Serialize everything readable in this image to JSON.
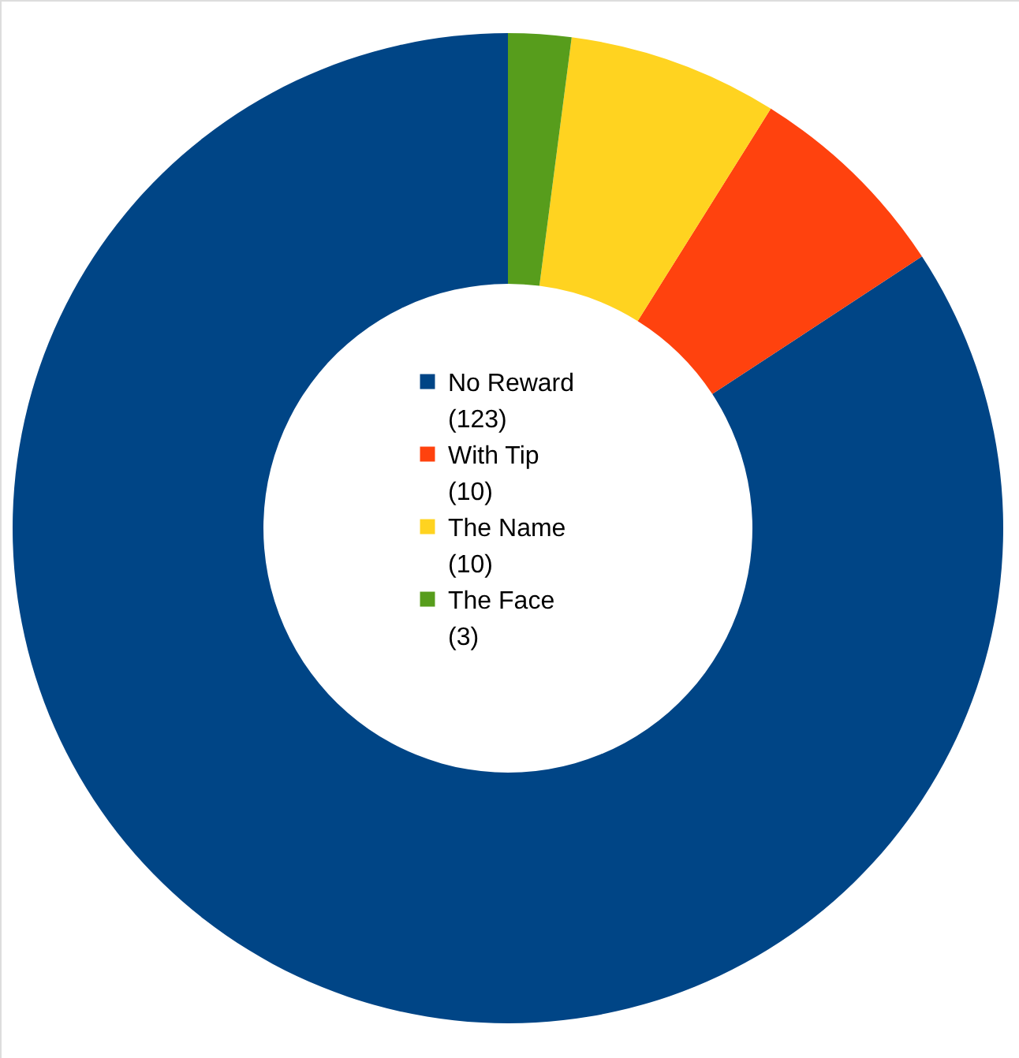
{
  "chart_data": {
    "type": "donut",
    "categories": [
      "No Reward",
      "With Tip",
      "The Name",
      "The Face"
    ],
    "values": [
      123,
      10,
      10,
      3
    ],
    "colors": [
      "#004586",
      "#ff420e",
      "#ffd320",
      "#579d1c"
    ],
    "value_labels": [
      "(123)",
      "(10)",
      "(10)",
      "(3)"
    ],
    "legend": "center"
  }
}
